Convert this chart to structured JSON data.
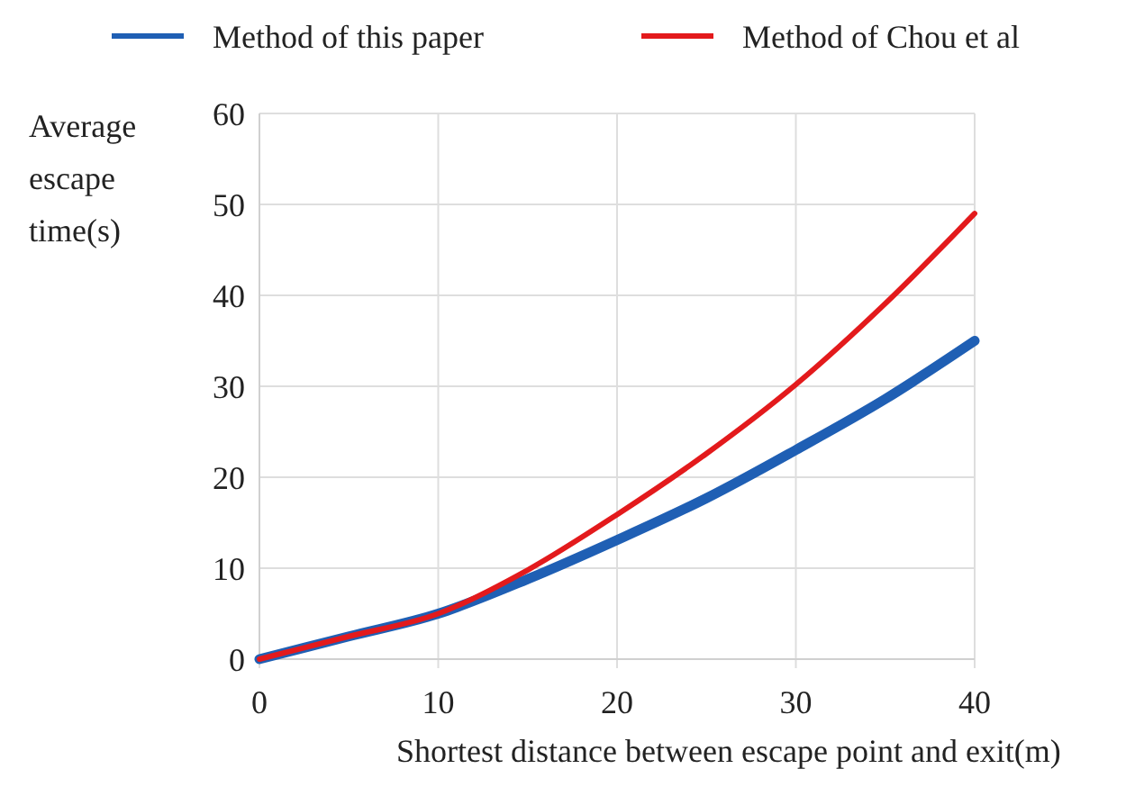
{
  "chart_data": {
    "type": "line",
    "xlabel": "Shortest distance between escape point and exit(m)",
    "ylabel": "Average escape time(s)",
    "x": [
      0,
      5,
      10,
      15,
      20,
      25,
      30,
      35,
      40
    ],
    "series": [
      {
        "name": "Method of this paper",
        "color": "#1f5fb4",
        "values": [
          0,
          2.5,
          5,
          8.8,
          13.1,
          17.7,
          23,
          28.6,
          35
        ]
      },
      {
        "name": "Method of Chou et al",
        "color": "#e31a1c",
        "values": [
          0,
          2.5,
          5,
          9.8,
          15.9,
          22.6,
          30.2,
          39.1,
          49
        ]
      }
    ],
    "xlim": [
      0,
      40
    ],
    "xticks": [
      0,
      10,
      20,
      30,
      40
    ],
    "ylim": [
      0,
      60
    ],
    "yticks": [
      0,
      10,
      20,
      30,
      40,
      50,
      60
    ],
    "grid": true,
    "legend": "top",
    "marker": "none",
    "line_style": "solid"
  }
}
